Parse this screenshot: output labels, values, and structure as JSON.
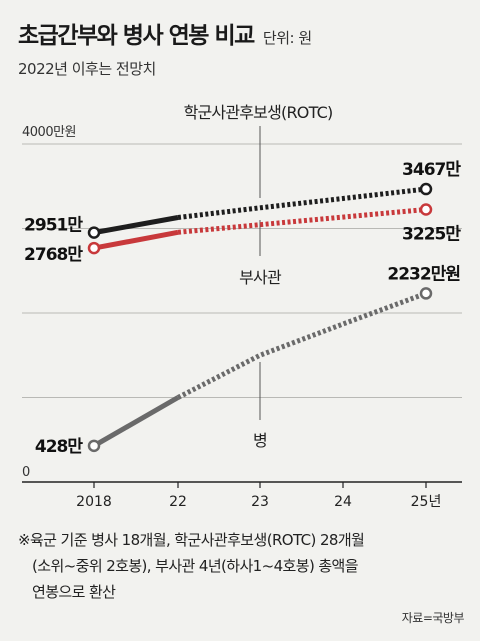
{
  "header": {
    "title": "초급간부와 병사 연봉 비교",
    "unit": "단위: 원",
    "subtitle": "2022년 이후는 전망치"
  },
  "chart_data": {
    "type": "line",
    "categories": [
      "2018",
      "22",
      "23",
      "24",
      "25년"
    ],
    "ylim": [
      0,
      4000
    ],
    "y_top_label": "4000만원",
    "y_zero_label": "0",
    "grid": true,
    "series": [
      {
        "name": "학군사관후보생(ROTC)",
        "color": "#1e1e1e",
        "values": [
          2951,
          3130,
          3245,
          3355,
          3467
        ],
        "start_label": "2951만",
        "end_label": "3467만"
      },
      {
        "name": "부사관",
        "color": "#c8393b",
        "values": [
          2768,
          2955,
          3045,
          3135,
          3225
        ],
        "start_label": "2768만",
        "end_label": "3225만"
      },
      {
        "name": "병",
        "color": "#6a6a6a",
        "values": [
          428,
          1000,
          1500,
          1870,
          2232
        ],
        "start_label": "428만",
        "end_label": "2232만원"
      }
    ],
    "projection_from": "22"
  },
  "footnote": {
    "lines": [
      "※육군 기준 병사 18개월, 학군사관후보생(ROTC) 28개월",
      "(소위~중위 2호봉), 부사관 4년(하사1~4호봉) 총액을",
      "연봉으로 환산"
    ]
  },
  "source": "자료=국방부"
}
